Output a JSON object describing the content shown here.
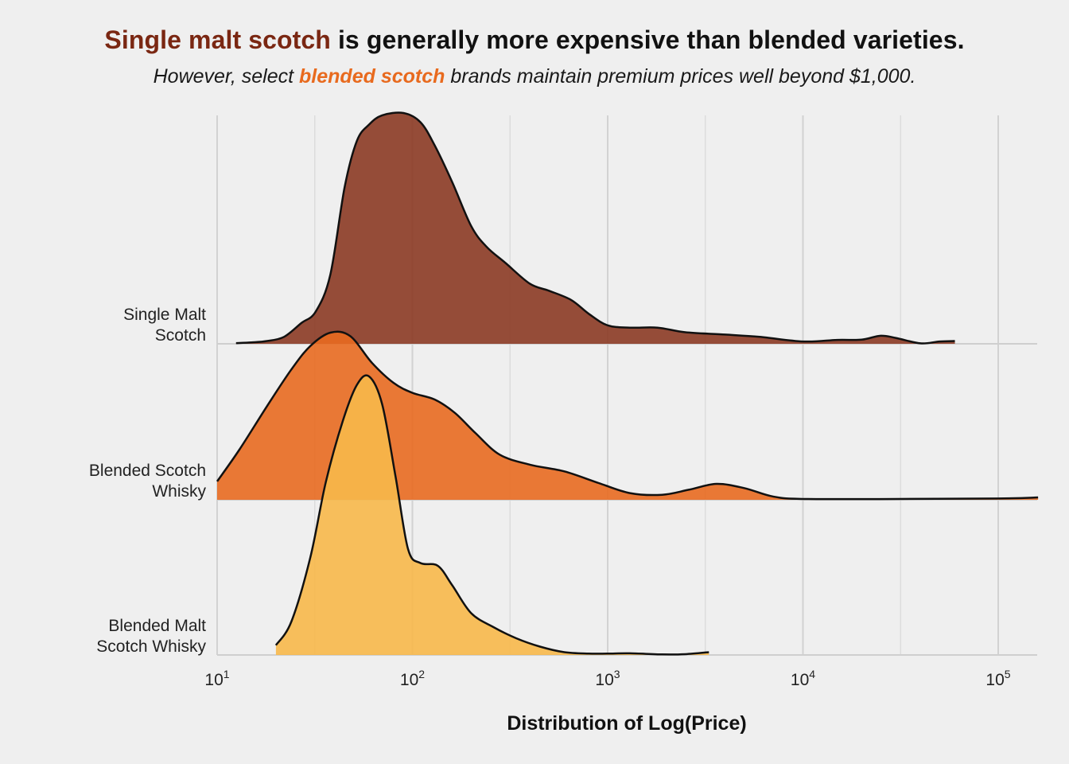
{
  "title": {
    "highlight": "Single malt scotch",
    "rest": " is generally more expensive than blended varieties.",
    "highlight_color": "#7a2712"
  },
  "subtitle": {
    "prefix": "However, select ",
    "highlight": "blended scotch",
    "suffix": " brands maintain premium prices well beyond $1,000.",
    "highlight_color": "#e86a1e"
  },
  "chart_data": {
    "type": "area",
    "subtype": "ridgeline",
    "xlabel": "Distribution of Log(Price)",
    "x_scale": "log10",
    "xlim": [
      10,
      160000
    ],
    "x_ticks": [
      {
        "value": 10,
        "base": "10",
        "exp": "1"
      },
      {
        "value": 100,
        "base": "10",
        "exp": "2"
      },
      {
        "value": 1000,
        "base": "10",
        "exp": "3"
      },
      {
        "value": 10000,
        "base": "10",
        "exp": "4"
      },
      {
        "value": 100000,
        "base": "10",
        "exp": "5"
      }
    ],
    "grid": true,
    "series": [
      {
        "name": "Single Malt Scotch",
        "label_lines": [
          "Single Malt",
          "Scotch"
        ],
        "color": "#8b3a24",
        "points": [
          [
            12.5,
            0.003
          ],
          [
            15,
            0.006
          ],
          [
            18,
            0.012
          ],
          [
            22,
            0.03
          ],
          [
            27,
            0.09
          ],
          [
            32,
            0.14
          ],
          [
            38,
            0.3
          ],
          [
            45,
            0.68
          ],
          [
            52,
            0.88
          ],
          [
            60,
            0.95
          ],
          [
            70,
            0.99
          ],
          [
            90,
            1.0
          ],
          [
            110,
            0.96
          ],
          [
            130,
            0.86
          ],
          [
            160,
            0.7
          ],
          [
            200,
            0.51
          ],
          [
            240,
            0.42
          ],
          [
            300,
            0.35
          ],
          [
            400,
            0.26
          ],
          [
            500,
            0.23
          ],
          [
            650,
            0.19
          ],
          [
            800,
            0.13
          ],
          [
            1000,
            0.08
          ],
          [
            1300,
            0.07
          ],
          [
            1800,
            0.07
          ],
          [
            2500,
            0.05
          ],
          [
            4000,
            0.04
          ],
          [
            6000,
            0.03
          ],
          [
            10000,
            0.01
          ],
          [
            15000,
            0.017
          ],
          [
            20000,
            0.018
          ],
          [
            25000,
            0.035
          ],
          [
            30000,
            0.025
          ],
          [
            40000,
            0.002
          ],
          [
            50000,
            0.01
          ],
          [
            60000,
            0.012
          ]
        ]
      },
      {
        "name": "Blended Scotch Whisky",
        "label_lines": [
          "Blended Scotch",
          "Whisky"
        ],
        "color": "#e86a20",
        "points": [
          [
            10,
            0.11
          ],
          [
            13,
            0.3
          ],
          [
            18,
            0.56
          ],
          [
            24,
            0.78
          ],
          [
            30,
            0.92
          ],
          [
            38,
            1.0
          ],
          [
            48,
            0.98
          ],
          [
            62,
            0.82
          ],
          [
            80,
            0.7
          ],
          [
            100,
            0.64
          ],
          [
            130,
            0.6
          ],
          [
            165,
            0.52
          ],
          [
            210,
            0.4
          ],
          [
            280,
            0.27
          ],
          [
            400,
            0.21
          ],
          [
            600,
            0.17
          ],
          [
            900,
            0.1
          ],
          [
            1300,
            0.04
          ],
          [
            1900,
            0.03
          ],
          [
            2600,
            0.06
          ],
          [
            3600,
            0.095
          ],
          [
            5000,
            0.07
          ],
          [
            7000,
            0.02
          ],
          [
            10000,
            0.005
          ],
          [
            30000,
            0.005
          ],
          [
            100000,
            0.008
          ],
          [
            160000,
            0.014
          ]
        ]
      },
      {
        "name": "Blended Malt Scotch Whisky",
        "label_lines": [
          "Blended Malt",
          "Scotch Whisky"
        ],
        "color": "#f7b84a",
        "points": [
          [
            20,
            0.035
          ],
          [
            24,
            0.12
          ],
          [
            30,
            0.35
          ],
          [
            36,
            0.62
          ],
          [
            44,
            0.84
          ],
          [
            52,
            0.97
          ],
          [
            60,
            1.0
          ],
          [
            70,
            0.9
          ],
          [
            82,
            0.64
          ],
          [
            95,
            0.38
          ],
          [
            110,
            0.33
          ],
          [
            135,
            0.32
          ],
          [
            160,
            0.25
          ],
          [
            200,
            0.15
          ],
          [
            260,
            0.1
          ],
          [
            340,
            0.06
          ],
          [
            450,
            0.03
          ],
          [
            600,
            0.01
          ],
          [
            800,
            0.005
          ],
          [
            1000,
            0.005
          ],
          [
            1300,
            0.006
          ],
          [
            1900,
            0.002
          ],
          [
            2500,
            0.003
          ],
          [
            3300,
            0.01
          ]
        ]
      }
    ]
  }
}
